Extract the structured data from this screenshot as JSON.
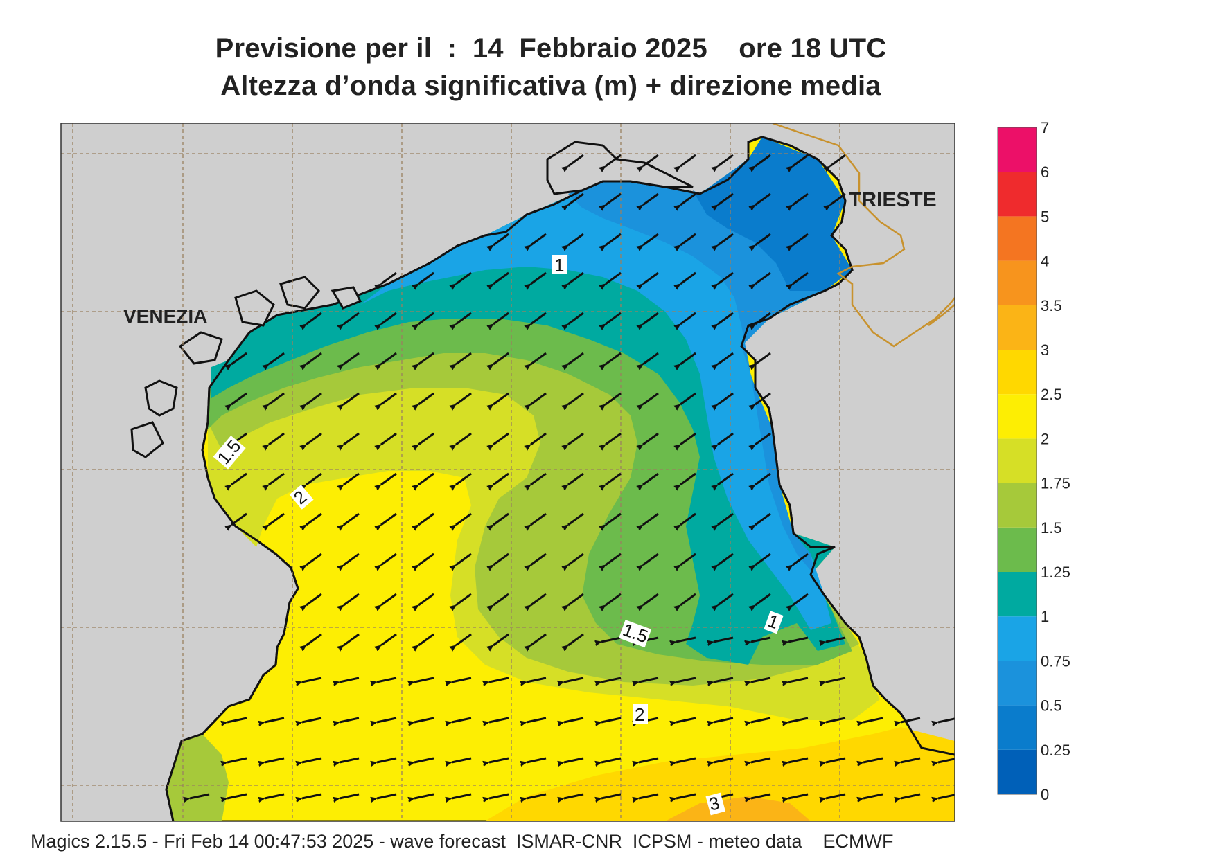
{
  "header": {
    "title_line1": "Previsione per il  :  14  Febbraio 2025    ore 18 UTC",
    "title_line2": "Altezza d’onda significativa (m) + direzione media"
  },
  "map": {
    "cities": [
      "VENEZIA",
      "TRIESTE"
    ],
    "contour_labels": [
      "1",
      "1.5",
      "2",
      "1",
      "1.5",
      "2",
      "3"
    ],
    "colors": {
      "land": "#cfcfcf",
      "coast": "#111111",
      "border": "#c8922e",
      "grid": "#9a8060"
    }
  },
  "legend": {
    "ticks": [
      "0",
      "0.25",
      "0.5",
      "0.75",
      "1",
      "1.25",
      "1.5",
      "1.75",
      "2",
      "2.5",
      "3",
      "3.5",
      "4",
      "5",
      "6",
      "7"
    ],
    "colors": [
      "#0060b8",
      "#0a7ccc",
      "#1b92dc",
      "#1aa4e6",
      "#00aaa0",
      "#6cbb4c",
      "#a6c93a",
      "#d6df26",
      "#fdee03",
      "#ffd800",
      "#fbb416",
      "#f7941d",
      "#f47521",
      "#ef2b2d",
      "#ec1068"
    ]
  },
  "footer": {
    "text": "Magics 2.15.5 - Fri Feb 14 00:47:53 2025 - wave forecast  ISMAR-CNR  ICPSM - meteo data    ECMWF"
  }
}
